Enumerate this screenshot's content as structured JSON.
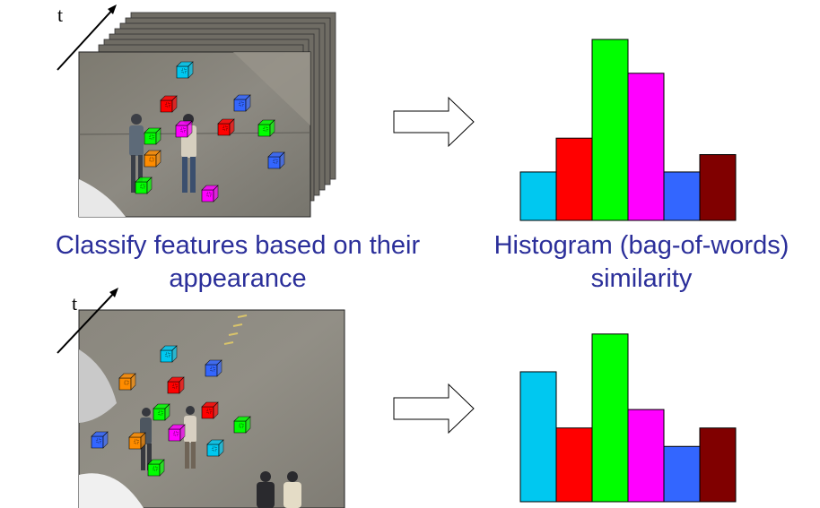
{
  "labels": {
    "time_axis_top": "t",
    "time_axis_bottom": "t",
    "caption_left": "Classify features based on their appearance",
    "caption_left_line1": "Classify features based on their",
    "caption_left_line2": "appearance",
    "caption_right_line1": "Histogram (bag-of-words)",
    "caption_right_line2": "similarity"
  },
  "colors": {
    "caption": "#2b2f9a",
    "cyan": "#00c8f0",
    "red": "#ff0000",
    "green": "#00ff00",
    "magenta": "#ff00ff",
    "blue": "#3366ff",
    "maroon": "#800000",
    "orange": "#ff8c00"
  },
  "icons": {
    "arrow": "hollow-right-arrow",
    "feature": "3d-cube-icon"
  },
  "chart_data": [
    {
      "type": "bar",
      "categories": [
        "cyan",
        "red",
        "green",
        "magenta",
        "blue",
        "maroon"
      ],
      "colors": [
        "#00c8f0",
        "#ff0000",
        "#00ff00",
        "#ff00ff",
        "#3366ff",
        "#800000"
      ],
      "values": [
        53,
        90,
        198,
        161,
        53,
        72
      ],
      "ylim": [
        0,
        200
      ],
      "title": "",
      "xlabel": "",
      "ylabel": "",
      "grid": false,
      "legend": "none"
    },
    {
      "type": "bar",
      "categories": [
        "cyan",
        "red",
        "green",
        "magenta",
        "blue",
        "maroon"
      ],
      "colors": [
        "#00c8f0",
        "#ff0000",
        "#00ff00",
        "#ff00ff",
        "#3366ff",
        "#800000"
      ],
      "values": [
        148,
        84,
        191,
        105,
        63,
        84
      ],
      "ylim": [
        0,
        200
      ],
      "title": "",
      "xlabel": "",
      "ylabel": "",
      "grid": false,
      "legend": "none"
    }
  ]
}
